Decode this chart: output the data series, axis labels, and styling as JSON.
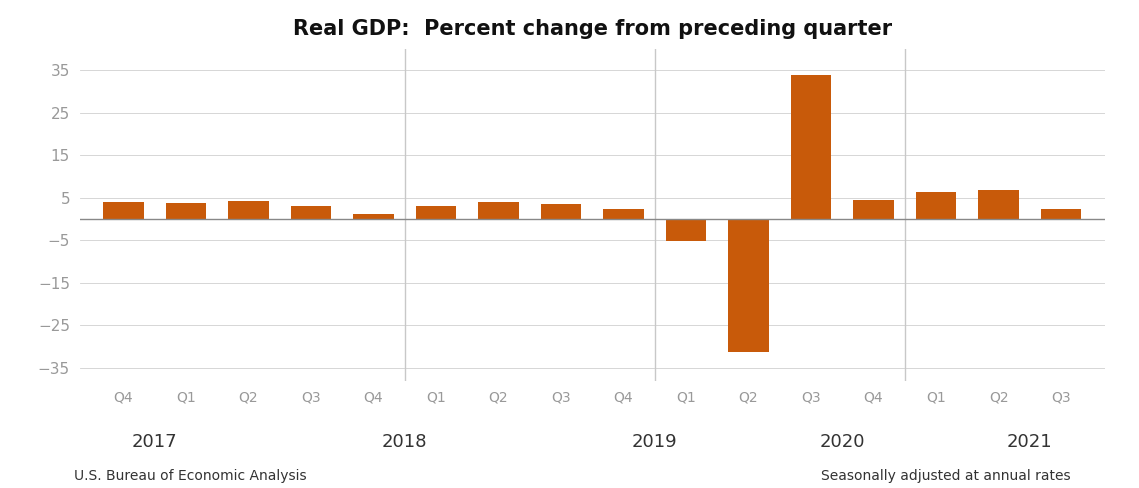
{
  "title": "Real GDP:  Percent change from preceding quarter",
  "bar_color": "#C85A0A",
  "zero_line_color": "#888888",
  "vline_color": "#C8C8C8",
  "hline_color": "#D0D0D0",
  "tick_label_color": "#999999",
  "year_label_color": "#333333",
  "background_color": "#FFFFFF",
  "categories": [
    "Q4",
    "Q1",
    "Q2",
    "Q3",
    "Q4",
    "Q1",
    "Q2",
    "Q3",
    "Q4",
    "Q1",
    "Q2",
    "Q3",
    "Q4",
    "Q1",
    "Q2",
    "Q3"
  ],
  "values": [
    4.1,
    3.8,
    4.2,
    3.0,
    1.1,
    3.1,
    4.1,
    3.5,
    2.4,
    -5.1,
    -31.2,
    33.8,
    4.5,
    6.3,
    6.7,
    2.3
  ],
  "ylim": [
    -38,
    40
  ],
  "yticks": [
    -35,
    -25,
    -15,
    -5,
    5,
    15,
    25,
    35
  ],
  "year_label_data": [
    [
      0.5,
      "2017"
    ],
    [
      4.5,
      "2018"
    ],
    [
      8.5,
      "2019"
    ],
    [
      11.5,
      "2020"
    ],
    [
      14.5,
      "2021"
    ]
  ],
  "vline_positions": [
    4.5,
    8.5,
    12.5
  ],
  "footer_left": "U.S. Bureau of Economic Analysis",
  "footer_right": "Seasonally adjusted at annual rates",
  "title_fontsize": 15,
  "ytick_fontsize": 11,
  "xtick_fontsize": 10,
  "year_fontsize": 13,
  "footer_fontsize": 10
}
